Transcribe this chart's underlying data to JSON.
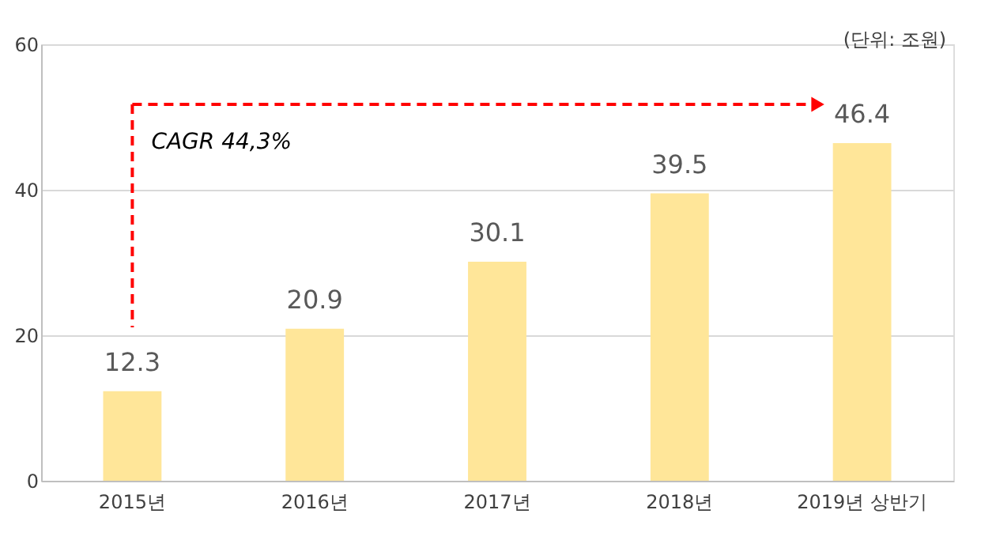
{
  "chart_data": {
    "type": "bar",
    "categories": [
      "2015년",
      "2016년",
      "2017년",
      "2018년",
      "2019년 상반기"
    ],
    "values": [
      12.3,
      20.9,
      30.1,
      39.5,
      46.4
    ],
    "color": "#ffe699",
    "ylim": [
      0,
      60
    ],
    "yticks": [
      0,
      20,
      40,
      60
    ],
    "grid": "y",
    "data_labels": true,
    "annotations": [
      "(단위: 조원)",
      "CAGR 44,3%"
    ]
  }
}
